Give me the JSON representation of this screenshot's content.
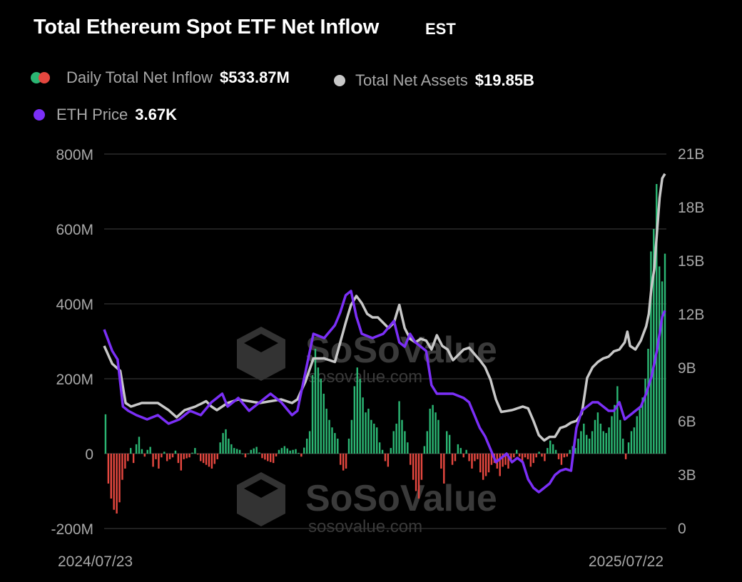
{
  "header": {
    "title": "Total Ethereum Spot ETF Net Inflow",
    "timezone": "EST"
  },
  "legend": [
    {
      "label": "Daily Total Net Inflow",
      "value": "$533.87M"
    },
    {
      "label": "Total Net Assets",
      "value": "$19.85B"
    },
    {
      "label": "ETH Price",
      "value": "3.67K"
    }
  ],
  "watermark": {
    "brand": "SoSoValue",
    "url": "sosovalue.com"
  },
  "colors": {
    "positive": "#2bb673",
    "negative": "#e5473f",
    "assets": "#c8c8c8",
    "price": "#7b2ff7",
    "grid": "#2a2a2a"
  },
  "chart_data": {
    "type": "bar+line",
    "x_start": "2024/07/23",
    "x_end": "2025/07/22",
    "left_axis": {
      "ticks": [
        "800M",
        "600M",
        "400M",
        "200M",
        "0",
        "-200M"
      ],
      "ylim": [
        -200,
        800
      ]
    },
    "right_axis": {
      "ticks": [
        "21B",
        "18B",
        "15B",
        "12B",
        "9B",
        "6B",
        "3B",
        "0"
      ],
      "ylim": [
        0,
        21
      ]
    },
    "inflow_anchors": [
      [
        0,
        105
      ],
      [
        1,
        -80
      ],
      [
        2,
        -120
      ],
      [
        3,
        -150
      ],
      [
        4,
        -160
      ],
      [
        5,
        -130
      ],
      [
        6,
        -70
      ],
      [
        7,
        -40
      ],
      [
        8,
        -20
      ],
      [
        9,
        15
      ],
      [
        10,
        -25
      ],
      [
        11,
        25
      ],
      [
        12,
        45
      ],
      [
        13,
        12
      ],
      [
        14,
        -8
      ],
      [
        15,
        10
      ],
      [
        16,
        18
      ],
      [
        17,
        -35
      ],
      [
        18,
        -15
      ],
      [
        19,
        -40
      ],
      [
        20,
        -10
      ],
      [
        21,
        5
      ],
      [
        22,
        -20
      ],
      [
        23,
        -15
      ],
      [
        24,
        -10
      ],
      [
        25,
        8
      ],
      [
        26,
        -25
      ],
      [
        27,
        -45
      ],
      [
        28,
        -15
      ],
      [
        30,
        -10
      ],
      [
        32,
        15
      ],
      [
        34,
        -20
      ],
      [
        36,
        -30
      ],
      [
        38,
        -40
      ],
      [
        40,
        -15
      ],
      [
        41,
        30
      ],
      [
        42,
        55
      ],
      [
        43,
        65
      ],
      [
        44,
        40
      ],
      [
        45,
        25
      ],
      [
        46,
        15
      ],
      [
        48,
        10
      ],
      [
        50,
        -10
      ],
      [
        52,
        10
      ],
      [
        54,
        18
      ],
      [
        56,
        -12
      ],
      [
        58,
        -20
      ],
      [
        60,
        -25
      ],
      [
        62,
        10
      ],
      [
        64,
        20
      ],
      [
        66,
        8
      ],
      [
        68,
        12
      ],
      [
        70,
        -8
      ],
      [
        72,
        40
      ],
      [
        73,
        60
      ],
      [
        74,
        210
      ],
      [
        75,
        280
      ],
      [
        76,
        230
      ],
      [
        77,
        200
      ],
      [
        78,
        160
      ],
      [
        79,
        120
      ],
      [
        80,
        90
      ],
      [
        81,
        70
      ],
      [
        82,
        55
      ],
      [
        83,
        40
      ],
      [
        84,
        -30
      ],
      [
        85,
        -45
      ],
      [
        86,
        -40
      ],
      [
        87,
        40
      ],
      [
        88,
        90
      ],
      [
        89,
        180
      ],
      [
        90,
        230
      ],
      [
        91,
        200
      ],
      [
        92,
        150
      ],
      [
        93,
        110
      ],
      [
        94,
        120
      ],
      [
        95,
        90
      ],
      [
        96,
        80
      ],
      [
        97,
        70
      ],
      [
        98,
        30
      ],
      [
        99,
        10
      ],
      [
        100,
        -20
      ],
      [
        101,
        -35
      ],
      [
        102,
        15
      ],
      [
        103,
        60
      ],
      [
        104,
        80
      ],
      [
        105,
        140
      ],
      [
        106,
        90
      ],
      [
        107,
        60
      ],
      [
        108,
        30
      ],
      [
        109,
        -30
      ],
      [
        110,
        -70
      ],
      [
        111,
        -100
      ],
      [
        112,
        -120
      ],
      [
        113,
        -70
      ],
      [
        114,
        20
      ],
      [
        115,
        60
      ],
      [
        116,
        120
      ],
      [
        117,
        130
      ],
      [
        118,
        110
      ],
      [
        119,
        90
      ],
      [
        120,
        -40
      ],
      [
        121,
        -80
      ],
      [
        122,
        60
      ],
      [
        123,
        50
      ],
      [
        124,
        -30
      ],
      [
        125,
        -20
      ],
      [
        126,
        25
      ],
      [
        127,
        15
      ],
      [
        128,
        -10
      ],
      [
        129,
        10
      ],
      [
        130,
        -20
      ],
      [
        131,
        -40
      ],
      [
        132,
        -20
      ],
      [
        133,
        -15
      ],
      [
        134,
        -50
      ],
      [
        135,
        -70
      ],
      [
        136,
        -60
      ],
      [
        137,
        -50
      ],
      [
        138,
        -30
      ],
      [
        139,
        -25
      ],
      [
        140,
        -40
      ],
      [
        141,
        -60
      ],
      [
        142,
        -35
      ],
      [
        143,
        -30
      ],
      [
        144,
        -40
      ],
      [
        145,
        -15
      ],
      [
        146,
        -10
      ],
      [
        147,
        10
      ],
      [
        148,
        -8
      ],
      [
        149,
        -20
      ],
      [
        150,
        -10
      ],
      [
        151,
        -15
      ],
      [
        152,
        -35
      ],
      [
        153,
        -25
      ],
      [
        154,
        -10
      ],
      [
        155,
        5
      ],
      [
        156,
        -8
      ],
      [
        157,
        -20
      ],
      [
        158,
        15
      ],
      [
        159,
        35
      ],
      [
        160,
        25
      ],
      [
        161,
        10
      ],
      [
        162,
        -15
      ],
      [
        163,
        -30
      ],
      [
        164,
        -10
      ],
      [
        165,
        -8
      ],
      [
        166,
        10
      ],
      [
        167,
        20
      ],
      [
        168,
        15
      ],
      [
        169,
        40
      ],
      [
        170,
        60
      ],
      [
        171,
        80
      ],
      [
        172,
        50
      ],
      [
        173,
        40
      ],
      [
        174,
        60
      ],
      [
        175,
        90
      ],
      [
        176,
        110
      ],
      [
        177,
        80
      ],
      [
        178,
        60
      ],
      [
        179,
        55
      ],
      [
        180,
        70
      ],
      [
        181,
        100
      ],
      [
        182,
        130
      ],
      [
        183,
        180
      ],
      [
        184,
        90
      ],
      [
        185,
        40
      ],
      [
        186,
        -15
      ],
      [
        187,
        30
      ],
      [
        188,
        60
      ],
      [
        189,
        70
      ],
      [
        190,
        100
      ],
      [
        191,
        120
      ],
      [
        192,
        150
      ],
      [
        193,
        200
      ],
      [
        194,
        280
      ],
      [
        195,
        540
      ],
      [
        196,
        600
      ],
      [
        197,
        720
      ],
      [
        198,
        500
      ],
      [
        199,
        460
      ],
      [
        200,
        534
      ]
    ],
    "assets_anchors": [
      [
        0,
        10.2
      ],
      [
        3,
        9.2
      ],
      [
        6,
        8.8
      ],
      [
        8,
        7.0
      ],
      [
        10,
        6.8
      ],
      [
        14,
        7.0
      ],
      [
        20,
        7.0
      ],
      [
        24,
        6.6
      ],
      [
        27,
        6.2
      ],
      [
        30,
        6.6
      ],
      [
        34,
        6.8
      ],
      [
        38,
        7.1
      ],
      [
        40,
        6.8
      ],
      [
        42,
        6.6
      ],
      [
        46,
        7.0
      ],
      [
        50,
        7.2
      ],
      [
        54,
        7.1
      ],
      [
        58,
        7.0
      ],
      [
        62,
        7.1
      ],
      [
        66,
        7.2
      ],
      [
        70,
        7.0
      ],
      [
        72,
        7.2
      ],
      [
        75,
        8.2
      ],
      [
        78,
        9.5
      ],
      [
        82,
        9.5
      ],
      [
        86,
        9.3
      ],
      [
        88,
        10.4
      ],
      [
        90,
        11.5
      ],
      [
        92,
        12.5
      ],
      [
        94,
        13.0
      ],
      [
        96,
        12.6
      ],
      [
        98,
        12.0
      ],
      [
        100,
        11.8
      ],
      [
        102,
        11.8
      ],
      [
        104,
        11.5
      ],
      [
        106,
        11.2
      ],
      [
        108,
        11.5
      ],
      [
        110,
        12.5
      ],
      [
        112,
        11.2
      ],
      [
        114,
        10.6
      ],
      [
        116,
        10.4
      ],
      [
        118,
        10.6
      ],
      [
        120,
        10.5
      ],
      [
        122,
        10.0
      ],
      [
        124,
        10.8
      ],
      [
        126,
        10.2
      ],
      [
        128,
        10.0
      ],
      [
        130,
        9.4
      ],
      [
        134,
        10.0
      ],
      [
        136,
        10.1
      ],
      [
        140,
        9.4
      ],
      [
        142,
        9.0
      ],
      [
        144,
        8.3
      ],
      [
        146,
        7.2
      ],
      [
        148,
        6.5
      ],
      [
        152,
        6.6
      ],
      [
        156,
        6.8
      ],
      [
        158,
        6.7
      ],
      [
        160,
        6.0
      ],
      [
        162,
        5.2
      ],
      [
        164,
        4.9
      ],
      [
        166,
        5.1
      ],
      [
        168,
        5.1
      ],
      [
        170,
        5.6
      ],
      [
        172,
        5.7
      ],
      [
        174,
        5.9
      ],
      [
        176,
        6.0
      ],
      [
        178,
        6.4
      ],
      [
        180,
        8.4
      ],
      [
        182,
        9.0
      ],
      [
        184,
        9.3
      ],
      [
        186,
        9.5
      ],
      [
        188,
        9.6
      ],
      [
        190,
        9.9
      ],
      [
        192,
        10.0
      ],
      [
        194,
        10.4
      ],
      [
        195,
        11.0
      ],
      [
        196,
        10.2
      ],
      [
        198,
        10.0
      ],
      [
        200,
        10.5
      ],
      [
        202,
        11.3
      ],
      [
        203,
        12.0
      ],
      [
        204,
        13.5
      ],
      [
        205,
        14.5
      ],
      [
        206,
        16.5
      ],
      [
        207,
        18.5
      ],
      [
        208,
        19.6
      ],
      [
        209,
        19.85
      ]
    ],
    "price_anchors": [
      [
        0,
        3.45
      ],
      [
        3,
        3.2
      ],
      [
        5,
        3.1
      ],
      [
        7,
        2.55
      ],
      [
        9,
        2.5
      ],
      [
        12,
        2.45
      ],
      [
        16,
        2.4
      ],
      [
        20,
        2.45
      ],
      [
        24,
        2.35
      ],
      [
        28,
        2.4
      ],
      [
        32,
        2.5
      ],
      [
        36,
        2.45
      ],
      [
        40,
        2.6
      ],
      [
        44,
        2.7
      ],
      [
        46,
        2.55
      ],
      [
        50,
        2.65
      ],
      [
        54,
        2.5
      ],
      [
        58,
        2.6
      ],
      [
        62,
        2.7
      ],
      [
        66,
        2.6
      ],
      [
        70,
        2.45
      ],
      [
        72,
        2.5
      ],
      [
        76,
        3.1
      ],
      [
        78,
        3.4
      ],
      [
        82,
        3.35
      ],
      [
        86,
        3.5
      ],
      [
        88,
        3.65
      ],
      [
        90,
        3.85
      ],
      [
        92,
        3.9
      ],
      [
        94,
        3.6
      ],
      [
        96,
        3.4
      ],
      [
        100,
        3.35
      ],
      [
        104,
        3.4
      ],
      [
        108,
        3.55
      ],
      [
        110,
        3.3
      ],
      [
        112,
        3.25
      ],
      [
        114,
        3.4
      ],
      [
        116,
        3.3
      ],
      [
        118,
        3.25
      ],
      [
        120,
        3.2
      ],
      [
        122,
        2.8
      ],
      [
        124,
        2.7
      ],
      [
        128,
        2.7
      ],
      [
        130,
        2.7
      ],
      [
        134,
        2.65
      ],
      [
        136,
        2.6
      ],
      [
        138,
        2.45
      ],
      [
        140,
        2.3
      ],
      [
        142,
        2.2
      ],
      [
        144,
        2.05
      ],
      [
        146,
        1.9
      ],
      [
        148,
        1.95
      ],
      [
        150,
        2.0
      ],
      [
        152,
        1.9
      ],
      [
        154,
        1.95
      ],
      [
        156,
        1.9
      ],
      [
        158,
        1.7
      ],
      [
        160,
        1.6
      ],
      [
        162,
        1.55
      ],
      [
        164,
        1.6
      ],
      [
        166,
        1.65
      ],
      [
        168,
        1.75
      ],
      [
        170,
        1.8
      ],
      [
        172,
        1.82
      ],
      [
        174,
        1.8
      ],
      [
        176,
        2.3
      ],
      [
        178,
        2.5
      ],
      [
        180,
        2.55
      ],
      [
        182,
        2.6
      ],
      [
        184,
        2.6
      ],
      [
        186,
        2.55
      ],
      [
        188,
        2.5
      ],
      [
        190,
        2.5
      ],
      [
        192,
        2.6
      ],
      [
        194,
        2.4
      ],
      [
        196,
        2.45
      ],
      [
        198,
        2.5
      ],
      [
        200,
        2.55
      ],
      [
        202,
        2.7
      ],
      [
        204,
        2.9
      ],
      [
        206,
        3.2
      ],
      [
        208,
        3.6
      ],
      [
        209,
        3.67
      ]
    ]
  }
}
